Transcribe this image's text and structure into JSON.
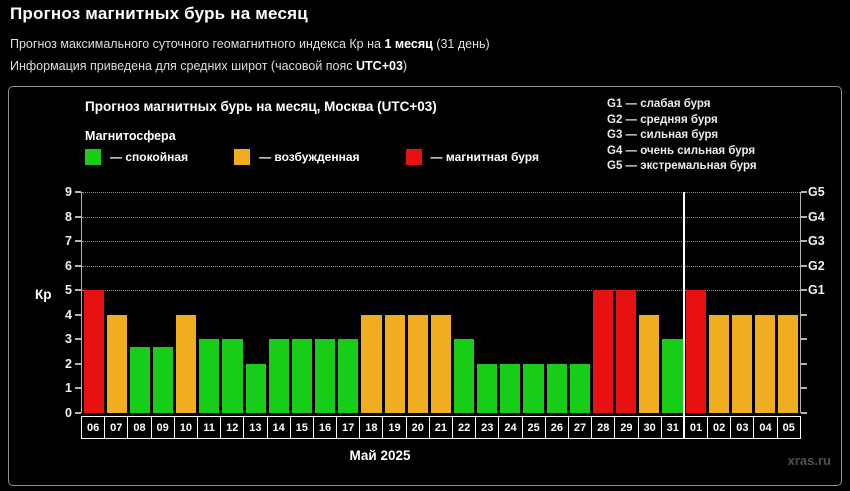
{
  "header": {
    "title": "Прогноз магнитных бурь на месяц",
    "subtitle1_prefix": "Прогноз максимального суточного геомагнитного индекса Кр на ",
    "subtitle1_bold": "1 месяц",
    "subtitle1_suffix": " (31 день)",
    "subtitle2_prefix": "Информация приведена для средних широт (часовой пояс ",
    "subtitle2_bold": "UTC+03",
    "subtitle2_suffix": ")"
  },
  "chart": {
    "title": "Прогноз магнитных бурь на месяц, Москва (UTC+03)",
    "legend_title": "Магнитосфера",
    "legend": [
      {
        "name": "quiet",
        "label": "— спокойная",
        "color": "#17cd17"
      },
      {
        "name": "excited",
        "label": "— возбужденная",
        "color": "#f0ad1f"
      },
      {
        "name": "storm",
        "label": "— магнитная буря",
        "color": "#e81111"
      }
    ],
    "g_legend": [
      "G1 — слабая буря",
      "G2 — средняя буря",
      "G3 — сильная буря",
      "G4 — очень сильная буря",
      "G5 — экстремальная буря"
    ],
    "watermark": "xras.ru"
  },
  "chart_data": {
    "type": "bar",
    "title": "Прогноз магнитных бурь на месяц, Москва (UTC+03)",
    "xlabel": "Май 2025",
    "ylabel": "Кр",
    "ylim": [
      0,
      9
    ],
    "yticks": [
      0,
      1,
      2,
      3,
      4,
      5,
      6,
      7,
      8,
      9
    ],
    "gridlines_at": [
      5,
      6,
      7,
      8,
      9
    ],
    "right_axis": [
      {
        "kp": 5,
        "label": "G1"
      },
      {
        "kp": 6,
        "label": "G2"
      },
      {
        "kp": 7,
        "label": "G3"
      },
      {
        "kp": 8,
        "label": "G4"
      },
      {
        "kp": 9,
        "label": "G5"
      }
    ],
    "categories": [
      "06",
      "07",
      "08",
      "09",
      "10",
      "11",
      "12",
      "13",
      "14",
      "15",
      "16",
      "17",
      "18",
      "19",
      "20",
      "21",
      "22",
      "23",
      "24",
      "25",
      "26",
      "27",
      "28",
      "29",
      "30",
      "31",
      "01",
      "02",
      "03",
      "04",
      "05"
    ],
    "values": [
      5,
      4,
      2.67,
      2.67,
      4,
      3,
      3,
      2,
      3,
      3,
      3,
      3,
      4,
      4,
      4,
      4,
      3,
      2,
      2,
      2,
      2,
      2,
      5,
      5,
      4,
      3,
      5,
      4,
      4,
      4,
      4
    ],
    "levels": [
      "storm",
      "excited",
      "quiet",
      "quiet",
      "excited",
      "quiet",
      "quiet",
      "quiet",
      "quiet",
      "quiet",
      "quiet",
      "quiet",
      "excited",
      "excited",
      "excited",
      "excited",
      "quiet",
      "quiet",
      "quiet",
      "quiet",
      "quiet",
      "quiet",
      "storm",
      "storm",
      "excited",
      "quiet",
      "storm",
      "excited",
      "excited",
      "excited",
      "excited"
    ],
    "level_colors": {
      "quiet": "#17cd17",
      "excited": "#f0ad1f",
      "storm": "#e81111"
    },
    "month_divider_after_index": 25,
    "legend_position": "top-left",
    "grid": "dotted horizontal lines at G-storm levels (Kp 5–9)"
  }
}
